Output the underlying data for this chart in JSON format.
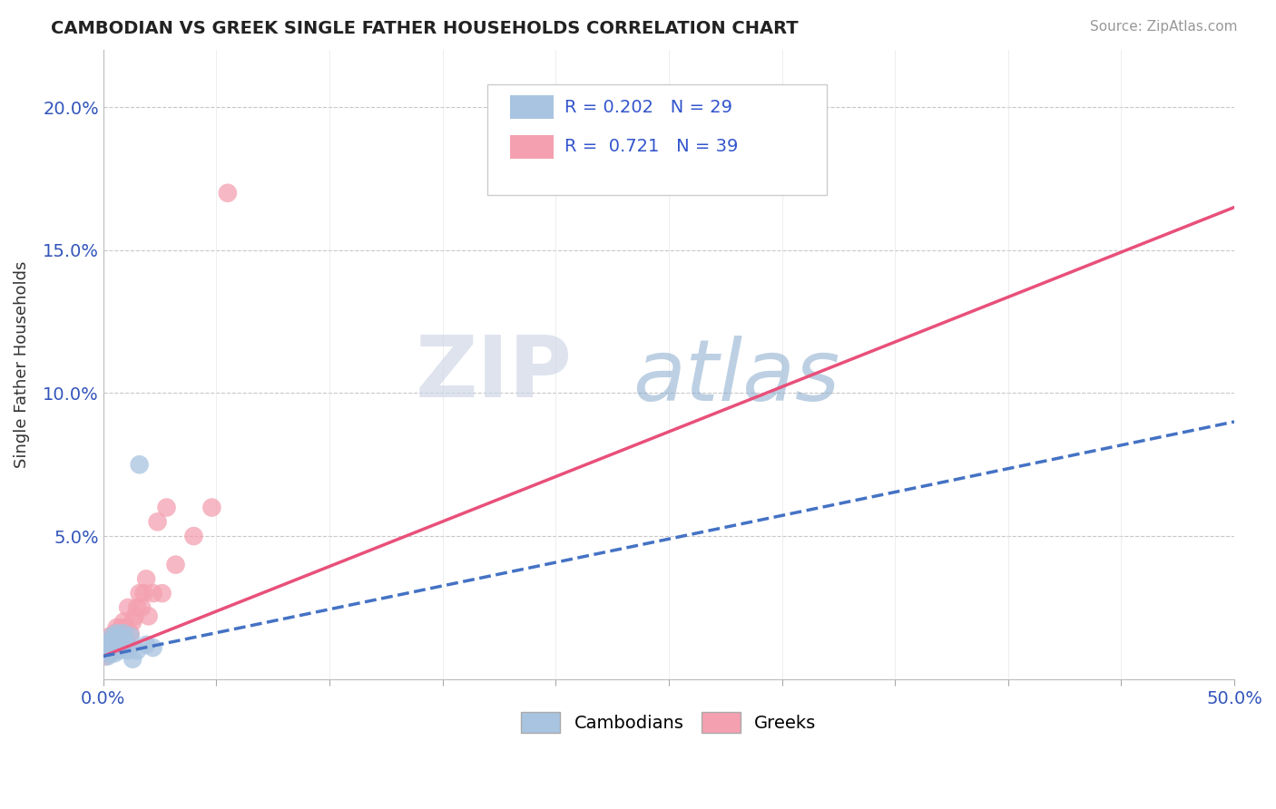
{
  "title": "CAMBODIAN VS GREEK SINGLE FATHER HOUSEHOLDS CORRELATION CHART",
  "source": "Source: ZipAtlas.com",
  "ylabel": "Single Father Households",
  "xlim": [
    0.0,
    0.5
  ],
  "ylim": [
    0.0,
    0.22
  ],
  "xticks": [
    0.0,
    0.05,
    0.1,
    0.15,
    0.2,
    0.25,
    0.3,
    0.35,
    0.4,
    0.45,
    0.5
  ],
  "yticks": [
    0.0,
    0.05,
    0.1,
    0.15,
    0.2
  ],
  "cambodian_color": "#a8c4e0",
  "greek_color": "#f4a0b0",
  "cambodian_line_color": "#4472c4",
  "greek_line_color": "#e8507a",
  "R_cambodian": 0.202,
  "N_cambodian": 29,
  "R_greek": 0.721,
  "N_greek": 39,
  "watermark_zip": "ZIP",
  "watermark_atlas": "atlas",
  "background_color": "#ffffff",
  "grid_color": "#c8c8c8",
  "cambodian_points_x": [
    0.001,
    0.002,
    0.002,
    0.003,
    0.003,
    0.003,
    0.004,
    0.004,
    0.005,
    0.005,
    0.005,
    0.006,
    0.006,
    0.006,
    0.007,
    0.007,
    0.007,
    0.008,
    0.008,
    0.009,
    0.009,
    0.01,
    0.011,
    0.012,
    0.013,
    0.015,
    0.016,
    0.019,
    0.022
  ],
  "cambodian_points_y": [
    0.01,
    0.008,
    0.012,
    0.009,
    0.011,
    0.013,
    0.01,
    0.015,
    0.009,
    0.012,
    0.014,
    0.011,
    0.013,
    0.016,
    0.01,
    0.012,
    0.015,
    0.011,
    0.014,
    0.012,
    0.016,
    0.013,
    0.01,
    0.015,
    0.007,
    0.01,
    0.075,
    0.012,
    0.011
  ],
  "greek_points_x": [
    0.001,
    0.002,
    0.002,
    0.003,
    0.003,
    0.004,
    0.004,
    0.005,
    0.005,
    0.005,
    0.006,
    0.006,
    0.007,
    0.007,
    0.008,
    0.008,
    0.009,
    0.009,
    0.01,
    0.01,
    0.011,
    0.011,
    0.012,
    0.013,
    0.014,
    0.015,
    0.016,
    0.017,
    0.018,
    0.019,
    0.02,
    0.022,
    0.024,
    0.026,
    0.028,
    0.032,
    0.04,
    0.048,
    0.055
  ],
  "greek_points_y": [
    0.008,
    0.009,
    0.012,
    0.01,
    0.015,
    0.011,
    0.014,
    0.01,
    0.013,
    0.016,
    0.012,
    0.018,
    0.011,
    0.015,
    0.013,
    0.018,
    0.012,
    0.02,
    0.014,
    0.018,
    0.012,
    0.025,
    0.016,
    0.02,
    0.022,
    0.025,
    0.03,
    0.025,
    0.03,
    0.035,
    0.022,
    0.03,
    0.055,
    0.03,
    0.06,
    0.04,
    0.05,
    0.06,
    0.17
  ],
  "greek_line_x0": 0.0,
  "greek_line_y0": 0.008,
  "greek_line_x1": 0.5,
  "greek_line_y1": 0.165,
  "cambodian_line_x0": 0.0,
  "cambodian_line_y0": 0.008,
  "cambodian_line_x1": 0.5,
  "cambodian_line_y1": 0.09
}
